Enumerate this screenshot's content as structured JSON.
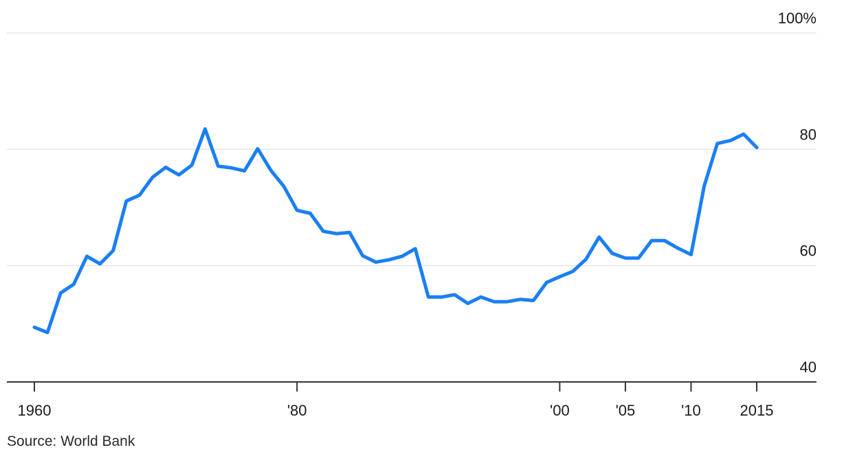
{
  "chart_data": {
    "type": "line",
    "title": "",
    "xlabel": "",
    "ylabel": "",
    "xlim": [
      1960,
      2015
    ],
    "ylim": [
      40,
      100
    ],
    "y_ticks": [
      {
        "value": 40,
        "label": "40"
      },
      {
        "value": 60,
        "label": "60"
      },
      {
        "value": 80,
        "label": "80"
      },
      {
        "value": 100,
        "label": "100%"
      }
    ],
    "x_ticks": [
      {
        "value": 1960,
        "label": "1960"
      },
      {
        "value": 1980,
        "label": "'80"
      },
      {
        "value": 2000,
        "label": "'00"
      },
      {
        "value": 2005,
        "label": "'05"
      },
      {
        "value": 2010,
        "label": "'10"
      },
      {
        "value": 2015,
        "label": "2015"
      }
    ],
    "grid": true,
    "line_color": "#1a7ff4",
    "grid_color": "#e6e6e6",
    "axis_color": "#333333",
    "series": [
      {
        "x": [
          1960,
          1961,
          1962,
          1963,
          1964,
          1965,
          1966,
          1967,
          1968,
          1969,
          1970,
          1971,
          1972,
          1973,
          1974,
          1975,
          1976,
          1977,
          1978,
          1979,
          1980,
          1981,
          1982,
          1983,
          1984,
          1985,
          1986,
          1987,
          1988,
          1989,
          1990,
          1991,
          1992,
          1993,
          1994,
          1995,
          1996,
          1997,
          1998,
          1999,
          2000,
          2001,
          2002,
          2003,
          2004,
          2005,
          2006,
          2007,
          2008,
          2009,
          2010,
          2011,
          2012,
          2013,
          2014,
          2015
        ],
        "values": [
          49.4,
          48.5,
          55.3,
          56.8,
          61.6,
          60.3,
          62.6,
          71.1,
          72.1,
          75.2,
          76.9,
          75.6,
          77.3,
          83.5,
          77.1,
          76.8,
          76.3,
          80.1,
          76.4,
          73.6,
          69.5,
          69.0,
          65.9,
          65.5,
          65.7,
          61.7,
          60.6,
          61.0,
          61.6,
          62.9,
          54.6,
          54.6,
          55.0,
          53.5,
          54.6,
          53.8,
          53.8,
          54.2,
          54.0,
          57.1,
          58.1,
          59.0,
          61.1,
          64.9,
          62.1,
          61.3,
          61.3,
          64.3,
          64.3,
          63.0,
          61.9,
          73.7,
          81.0,
          81.5,
          82.6,
          80.3
        ]
      }
    ]
  },
  "source": "Source: World Bank"
}
